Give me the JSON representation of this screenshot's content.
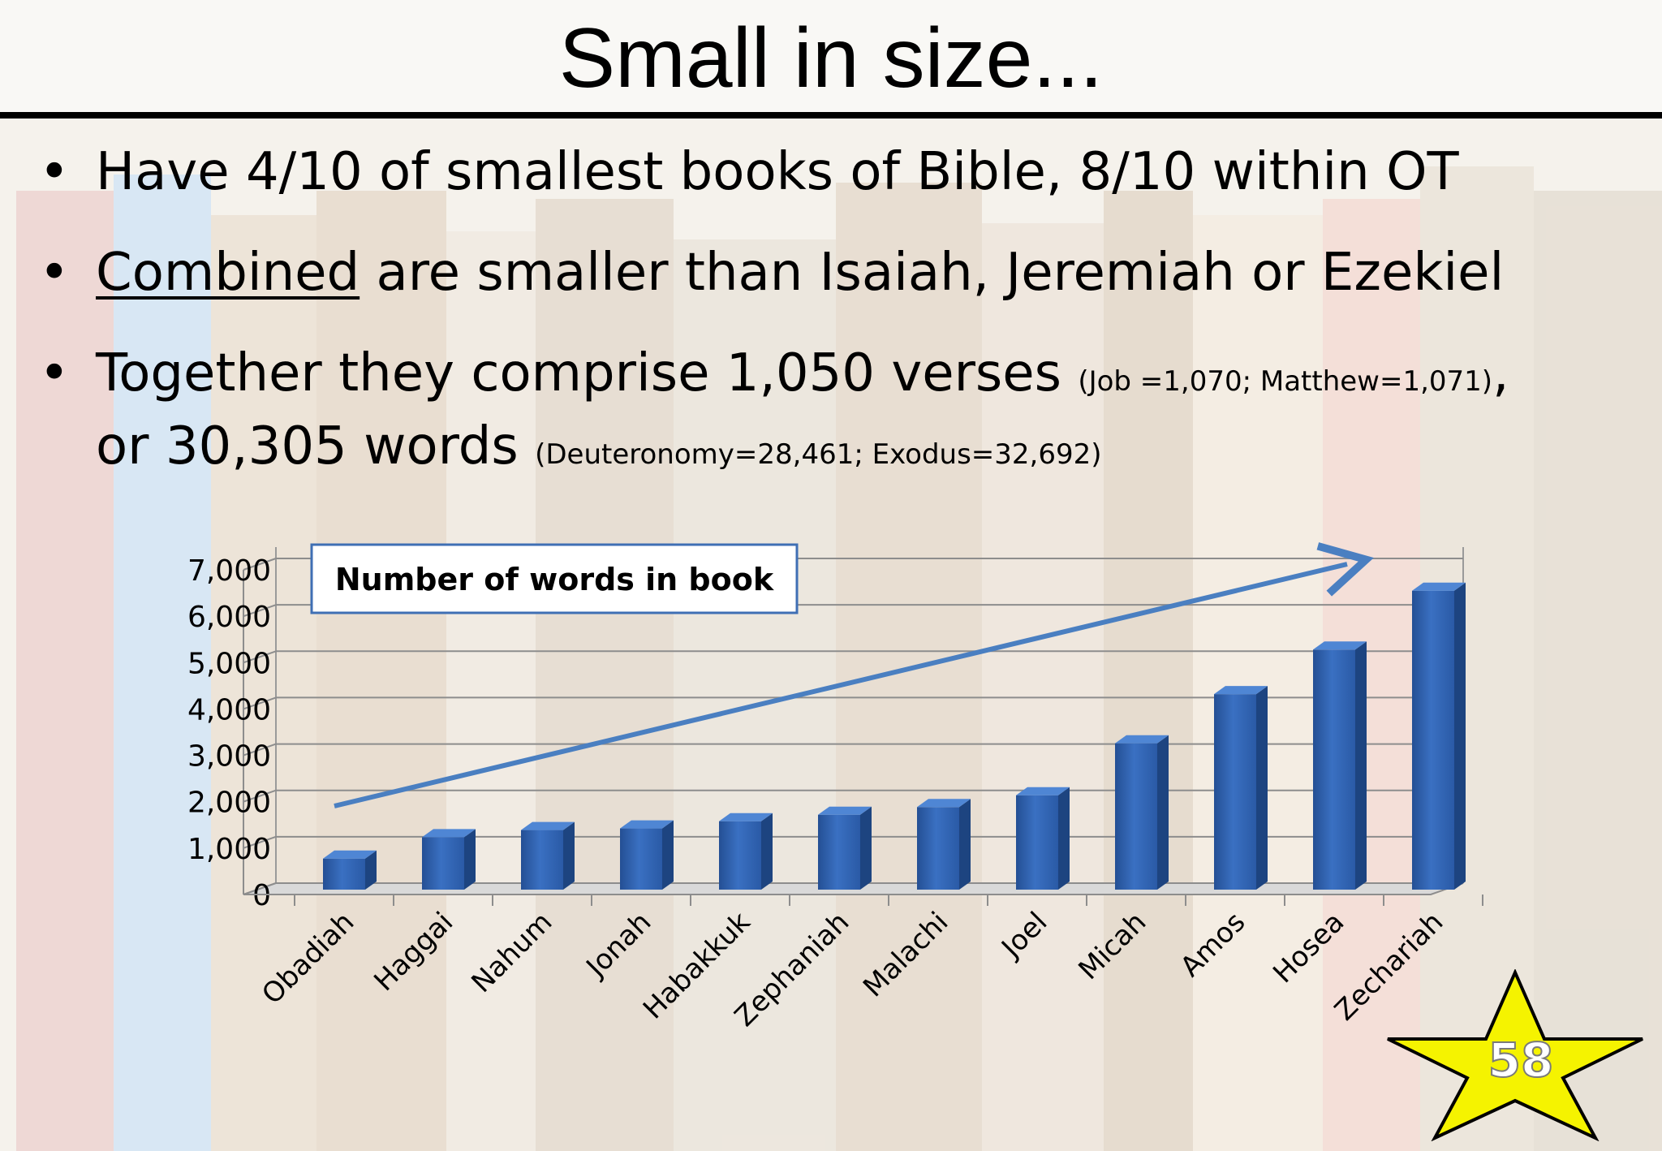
{
  "slide": {
    "title": "Small in size...",
    "page_number": "58",
    "bullets": [
      {
        "text": "Have 4/10 of smallest books of Bible, 8/10 within OT"
      },
      {
        "underlined": "Combined",
        "text": " are smaller than Isaiah, Jeremiah or Ezekiel"
      },
      {
        "text": "Together they comprise 1,050 verses ",
        "note": "(Job =1,070; Matthew=1,071)",
        "tail": ","
      },
      {
        "text": "or 30,305 words ",
        "note": "(Deuteronomy=28,461; Exodus=32,692)"
      }
    ]
  },
  "chart_data": {
    "type": "bar",
    "style": "3d-column",
    "title": "Number of words in book",
    "xlabel": "",
    "ylabel": "",
    "ylim": [
      0,
      7000
    ],
    "yticks": [
      0,
      1000,
      2000,
      3000,
      4000,
      5000,
      6000,
      7000
    ],
    "ytick_labels": [
      "0",
      "1,000",
      "2,000",
      "3,000",
      "4,000",
      "5,000",
      "6,000",
      "7,000"
    ],
    "grid": true,
    "categories": [
      "Obadiah",
      "Haggai",
      "Nahum",
      "Jonah",
      "Habakkuk",
      "Zephaniah",
      "Malachi",
      "Joel",
      "Micah",
      "Amos",
      "Hosea",
      "Zechariah"
    ],
    "values": [
      670,
      1130,
      1285,
      1320,
      1475,
      1615,
      1780,
      2035,
      3155,
      4215,
      5175,
      6445
    ],
    "bar_color": "#2f63b3",
    "annotation": "upward trend arrow"
  }
}
